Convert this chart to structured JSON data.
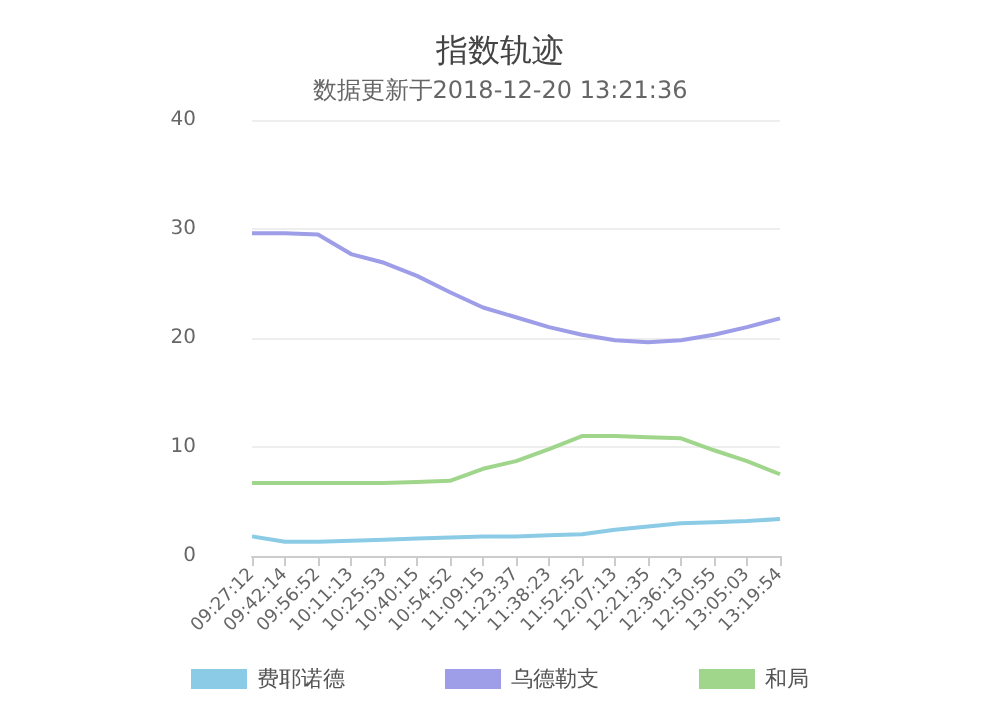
{
  "chart_data": {
    "type": "line",
    "title": "指数轨迹",
    "subtitle": "数据更新于2018-12-20 13:21:36",
    "categories": [
      "09:27:12",
      "09:42:14",
      "09:56:52",
      "10:11:13",
      "10:25:53",
      "10:40:15",
      "10:54:52",
      "11:09:15",
      "11:23:37",
      "11:38:23",
      "11:52:52",
      "12:07:13",
      "12:21:35",
      "12:36:13",
      "12:50:55",
      "13:05:03",
      "13:19:54"
    ],
    "series": [
      {
        "name": "费耶诺德",
        "color": "#8ccbe6",
        "values": [
          1.8,
          1.3,
          1.3,
          1.4,
          1.5,
          1.6,
          1.7,
          1.8,
          1.8,
          1.9,
          2.0,
          2.4,
          2.7,
          3.0,
          3.1,
          3.2,
          3.4
        ]
      },
      {
        "name": "乌德勒支",
        "color": "#9d9de8",
        "values": [
          29.6,
          29.6,
          29.5,
          27.7,
          26.9,
          25.7,
          24.2,
          22.8,
          21.9,
          21.0,
          20.3,
          19.8,
          19.6,
          19.8,
          20.3,
          21.0,
          21.8
        ]
      },
      {
        "name": "和局",
        "color": "#9fd68c",
        "values": [
          6.7,
          6.7,
          6.7,
          6.7,
          6.7,
          6.8,
          6.9,
          8.0,
          8.7,
          9.8,
          11.0,
          11.0,
          10.9,
          10.8,
          9.7,
          8.7,
          7.5
        ]
      }
    ],
    "ylim": [
      0,
      40
    ],
    "yticks": [
      0,
      10,
      20,
      30,
      40
    ],
    "grid": "y",
    "legend": "bottom",
    "marker": "none",
    "line_style": "solid"
  }
}
